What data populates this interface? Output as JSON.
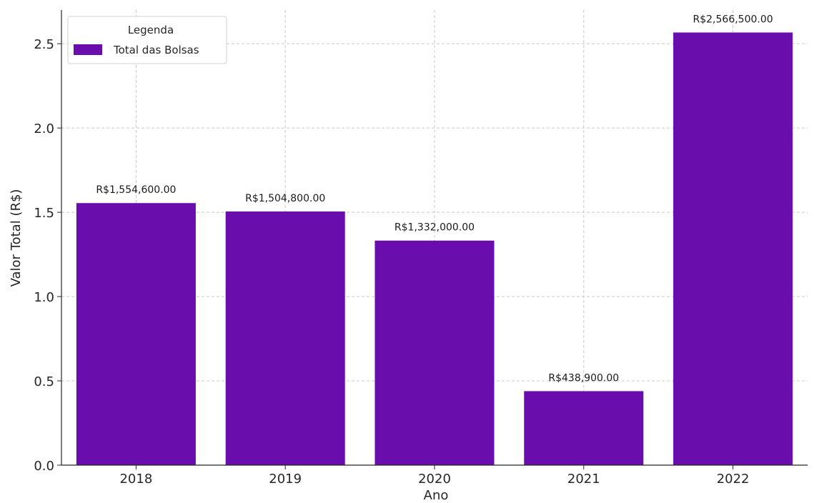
{
  "chart_data": {
    "type": "bar",
    "categories": [
      "2018",
      "2019",
      "2020",
      "2021",
      "2022"
    ],
    "series": [
      {
        "name": "Total das Bolsas",
        "values": [
          1.5546,
          1.5048,
          1.332,
          0.4389,
          2.5665
        ],
        "color": "#6a0dad"
      }
    ],
    "data_labels": [
      "R$1,554,600.00",
      "R$1,504,800.00",
      "R$1,332,000.00",
      "R$438,900.00",
      "R$2,566,500.00"
    ],
    "title": "",
    "xlabel": "Ano",
    "ylabel": "Valor Total (R$)",
    "ylim": [
      0,
      2.7
    ],
    "yticks": [
      "0.0",
      "0.5",
      "1.0",
      "1.5",
      "2.0",
      "2.5"
    ],
    "ytick_values": [
      0,
      0.5,
      1.0,
      1.5,
      2.0,
      2.5
    ],
    "grid": true,
    "legend": {
      "title": "Legenda",
      "placement": "top-left"
    }
  }
}
